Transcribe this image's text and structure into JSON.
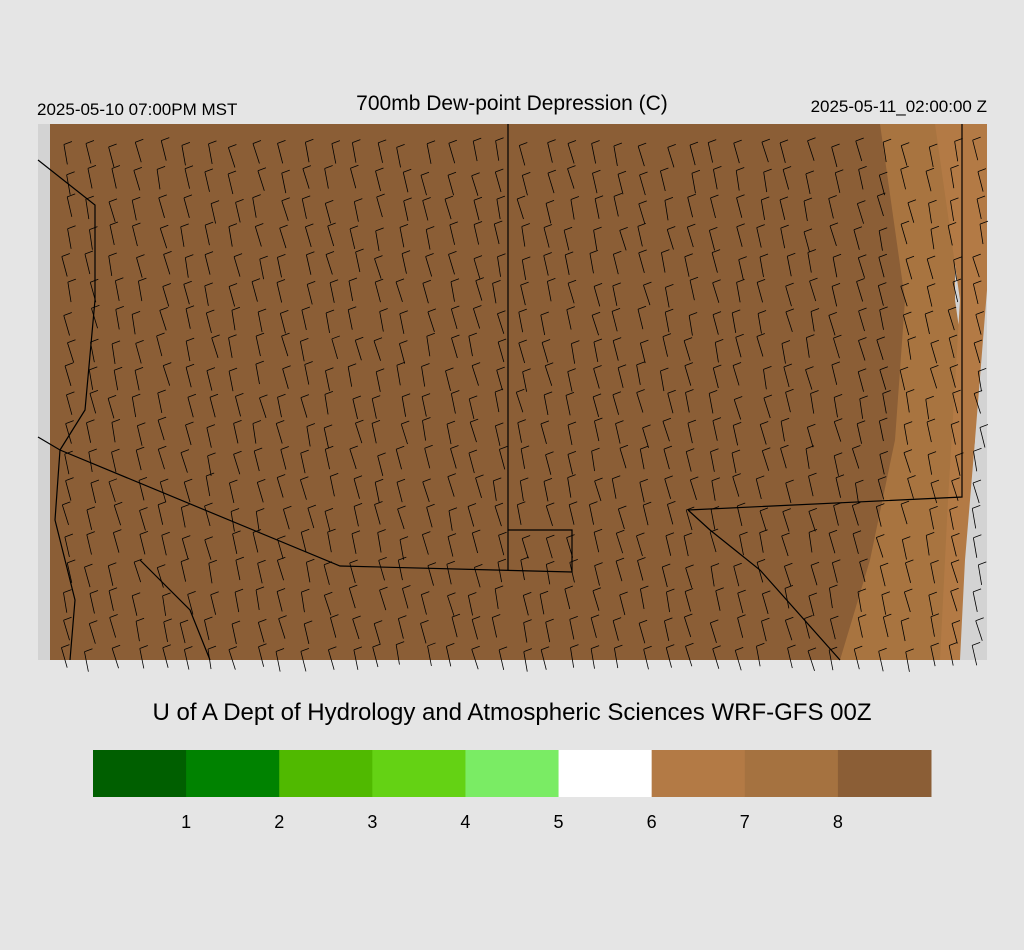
{
  "header": {
    "valid_local": "2025-05-10 07:00PM MST",
    "title": "700mb Dew-point Depression (C)",
    "valid_utc": "2025-05-11_02:00:00 Z"
  },
  "credit": "U of A Dept of Hydrology and Atmospheric Sciences WRF-GFS 00Z",
  "colorbar": {
    "colors": [
      "#005f00",
      "#008200",
      "#50b900",
      "#64d214",
      "#7aec64",
      "#ffffff",
      "#b37a45",
      "#a57240",
      "#8b5e36"
    ],
    "labels": [
      1,
      2,
      3,
      4,
      5,
      6,
      7,
      8
    ]
  }
}
